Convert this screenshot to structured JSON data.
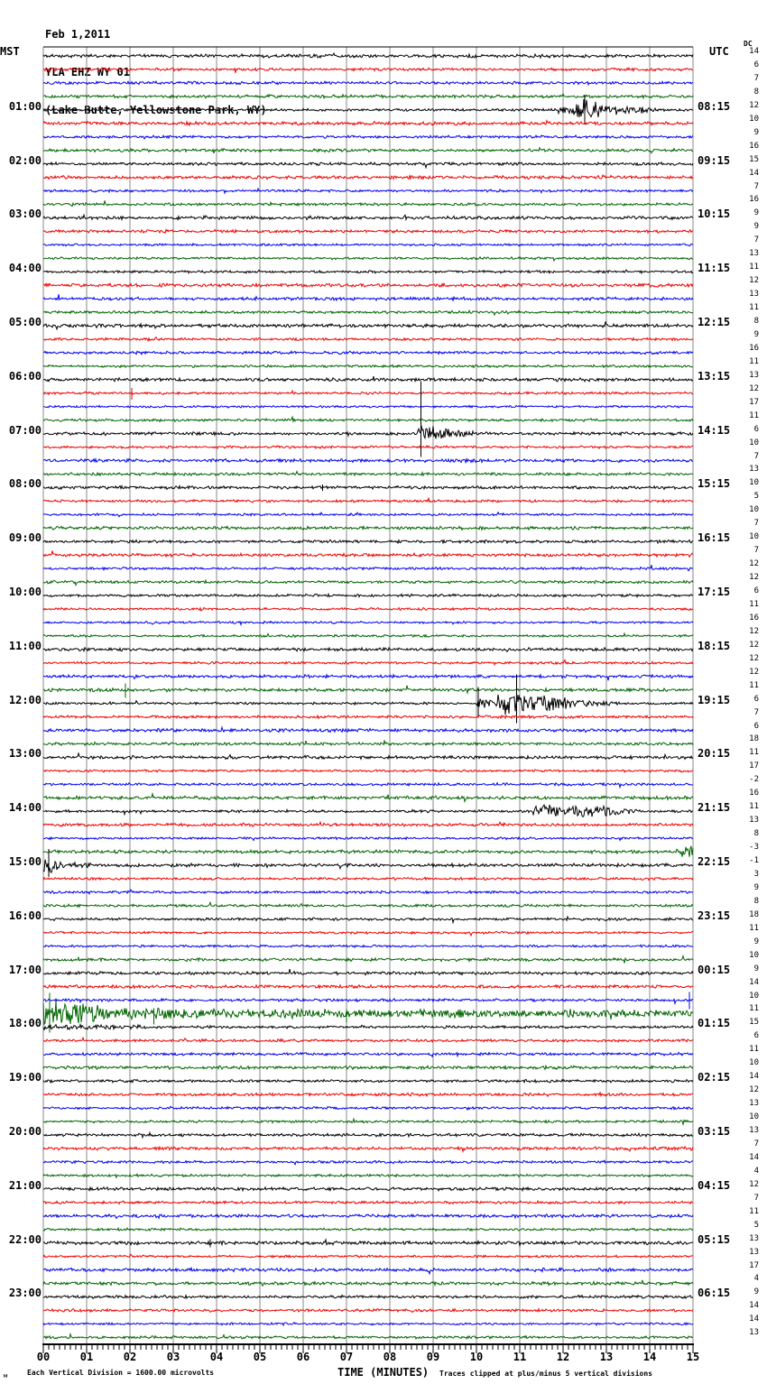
{
  "header": {
    "date": "Feb 1,2011",
    "station": "YLA EHZ WY 01",
    "location": "(Lake Butte, Yellowstone Park, WY)"
  },
  "axes": {
    "left_label": "MST",
    "right_label": "UTC",
    "dc_label": "DC",
    "x_title": "TIME (MINUTES)",
    "footer_left": "Each Vertical Division = 1600.00 microvolts",
    "footer_right": "Traces clipped at plus/minus 5 vertical divisions",
    "signature": "м",
    "x_tick_labels": [
      "00",
      "01",
      "02",
      "03",
      "04",
      "05",
      "06",
      "07",
      "08",
      "09",
      "10",
      "11",
      "12",
      "13",
      "14",
      "15"
    ]
  },
  "chart_data": {
    "type": "line",
    "title": "Helicorder seismogram YLA EHZ WY 01 (Lake Butte, Yellowstone Park, WY), Feb 1 2011",
    "xlabel": "TIME (MINUTES)",
    "x_range_minutes": [
      0,
      15
    ],
    "rows": 96,
    "rows_per_hour": 4,
    "minutes_per_row": 15,
    "grid": "vertical gridlines at every minute",
    "trace_colors": [
      "#000000",
      "#ee0000",
      "#0000ee",
      "#006400"
    ],
    "scale_note": "Each Vertical Division = 1600.00 microvolts",
    "clip_note": "Traces clipped at plus/minus 5 vertical divisions",
    "hour_rows": [
      {
        "row": 4,
        "mst": "01:00",
        "utc": "08:15"
      },
      {
        "row": 8,
        "mst": "02:00",
        "utc": "09:15"
      },
      {
        "row": 12,
        "mst": "03:00",
        "utc": "10:15"
      },
      {
        "row": 16,
        "mst": "04:00",
        "utc": "11:15"
      },
      {
        "row": 20,
        "mst": "05:00",
        "utc": "12:15"
      },
      {
        "row": 24,
        "mst": "06:00",
        "utc": "13:15"
      },
      {
        "row": 28,
        "mst": "07:00",
        "utc": "14:15"
      },
      {
        "row": 32,
        "mst": "08:00",
        "utc": "15:15"
      },
      {
        "row": 36,
        "mst": "09:00",
        "utc": "16:15"
      },
      {
        "row": 40,
        "mst": "10:00",
        "utc": "17:15"
      },
      {
        "row": 44,
        "mst": "11:00",
        "utc": "18:15"
      },
      {
        "row": 48,
        "mst": "12:00",
        "utc": "19:15"
      },
      {
        "row": 52,
        "mst": "13:00",
        "utc": "20:15"
      },
      {
        "row": 56,
        "mst": "14:00",
        "utc": "21:15"
      },
      {
        "row": 60,
        "mst": "15:00",
        "utc": "22:15"
      },
      {
        "row": 64,
        "mst": "16:00",
        "utc": "23:15"
      },
      {
        "row": 68,
        "mst": "17:00",
        "utc": "00:15"
      },
      {
        "row": 72,
        "mst": "18:00",
        "utc": "01:15"
      },
      {
        "row": 76,
        "mst": "19:00",
        "utc": "02:15"
      },
      {
        "row": 80,
        "mst": "20:00",
        "utc": "03:15"
      },
      {
        "row": 84,
        "mst": "21:00",
        "utc": "04:15"
      },
      {
        "row": 88,
        "mst": "22:00",
        "utc": "05:15"
      },
      {
        "row": 92,
        "mst": "23:00",
        "utc": "06:15"
      }
    ],
    "dc_offsets": [
      14,
      6,
      7,
      8,
      12,
      10,
      9,
      16,
      15,
      14,
      7,
      16,
      9,
      9,
      7,
      13,
      11,
      12,
      13,
      11,
      8,
      9,
      16,
      11,
      13,
      12,
      17,
      11,
      6,
      10,
      7,
      13,
      10,
      5,
      10,
      7,
      10,
      7,
      12,
      12,
      6,
      11,
      16,
      12,
      12,
      12,
      12,
      11,
      6,
      7,
      6,
      18,
      11,
      17,
      -2,
      16,
      11,
      13,
      8,
      -3,
      -1,
      3,
      9,
      8,
      18,
      11,
      9,
      10,
      9,
      14,
      10,
      11,
      15,
      6,
      11,
      10,
      14,
      12,
      13,
      10,
      13,
      7,
      14,
      4,
      12,
      7,
      11,
      5,
      13,
      13,
      17,
      4,
      9,
      14,
      14,
      13
    ],
    "events": {
      "envelopes": [
        [
          4,
          11.85,
          12.2,
          2,
          9
        ],
        [
          4,
          12.2,
          12.75,
          11,
          8
        ],
        [
          4,
          12.75,
          13.9,
          7,
          2.5
        ],
        [
          4,
          13.9,
          14.35,
          2.5,
          1
        ],
        [
          28,
          8.6,
          8.82,
          5,
          12
        ],
        [
          28,
          8.82,
          9.6,
          10,
          2.5
        ],
        [
          28,
          9.6,
          10.1,
          2.5,
          1
        ],
        [
          48,
          9.98,
          10.5,
          7,
          4
        ],
        [
          48,
          10.5,
          11.25,
          12,
          10
        ],
        [
          48,
          11.25,
          12.7,
          9,
          2
        ],
        [
          48,
          12.7,
          13.3,
          2,
          1
        ],
        [
          56,
          11.3,
          11.95,
          5,
          6
        ],
        [
          56,
          11.95,
          12.2,
          3,
          3
        ],
        [
          56,
          12.2,
          13.25,
          7,
          3.5
        ],
        [
          56,
          13.25,
          13.7,
          3,
          1
        ],
        [
          59,
          14.6,
          15,
          2.5,
          5.5
        ],
        [
          60,
          0,
          0.5,
          10,
          2.5
        ],
        [
          60,
          0.5,
          1.1,
          2,
          1
        ],
        [
          71,
          0,
          0.25,
          12,
          15
        ],
        [
          71,
          0.25,
          1.7,
          15,
          6
        ],
        [
          71,
          1.7,
          4.2,
          5.5,
          3.5
        ],
        [
          71,
          4.2,
          5.3,
          3.5,
          3
        ],
        [
          71,
          5.3,
          6.5,
          4.5,
          3.5
        ],
        [
          71,
          6.5,
          8.7,
          3.5,
          2.8
        ],
        [
          71,
          8.7,
          9.8,
          4.2,
          3
        ],
        [
          71,
          9.8,
          12.1,
          2.8,
          2.3
        ],
        [
          71,
          12.1,
          13.7,
          3.8,
          2.6
        ],
        [
          71,
          13.7,
          15,
          2.6,
          2.2
        ],
        [
          72,
          0,
          2.2,
          2,
          1
        ]
      ],
      "spikes": [
        [
          4,
          12.5,
          17,
          16
        ],
        [
          25,
          2.04,
          6,
          7
        ],
        [
          28,
          8.72,
          58,
          26
        ],
        [
          32,
          6.45,
          3.5,
          3.5
        ],
        [
          47,
          1.9,
          7,
          9
        ],
        [
          48,
          10.04,
          18,
          16
        ],
        [
          48,
          10.93,
          32,
          22
        ],
        [
          60,
          0.12,
          18,
          13
        ],
        [
          70,
          14.92,
          9,
          10
        ],
        [
          71,
          0.15,
          23,
          21
        ],
        [
          71,
          2.55,
          6,
          12
        ],
        [
          71,
          7.0,
          5,
          10
        ],
        [
          88,
          3.85,
          4,
          5
        ]
      ]
    }
  }
}
